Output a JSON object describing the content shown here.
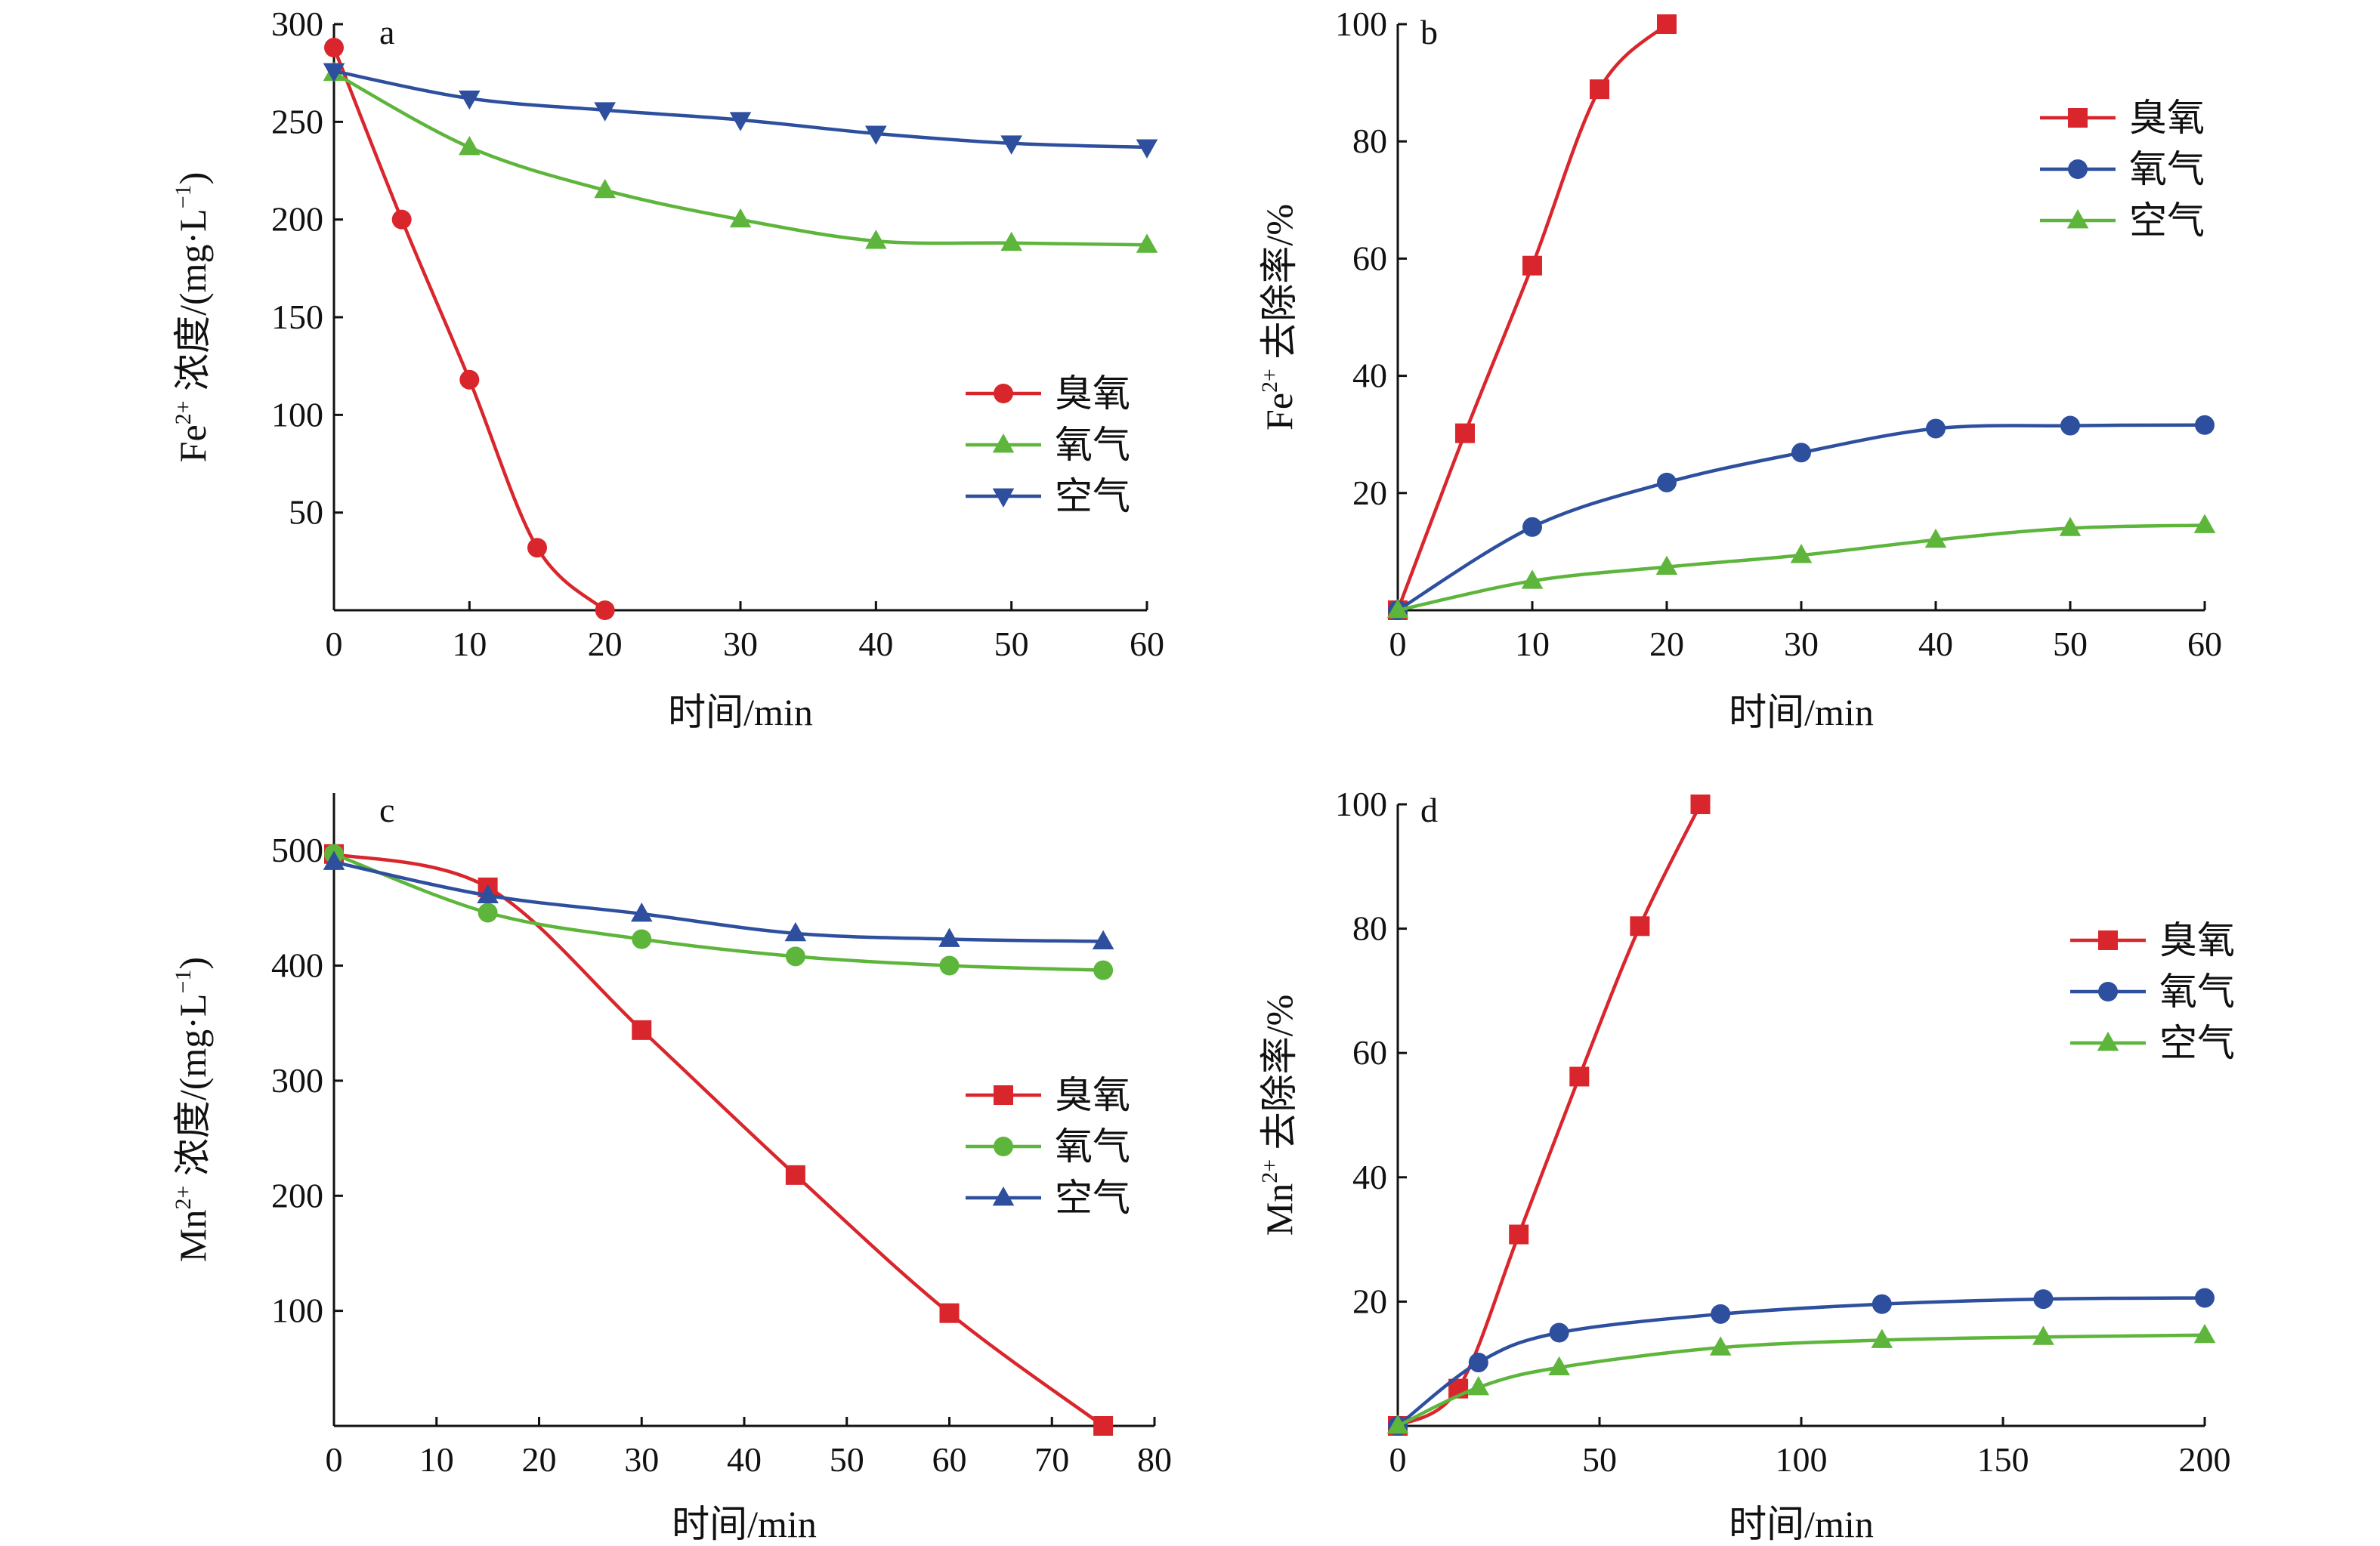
{
  "colors": {
    "ozone": "#d9262c",
    "oxygen": "#2d4f9e",
    "air": "#5db53b",
    "axis": "#111111"
  },
  "chart_data": [
    {
      "type": "line",
      "panel": "a",
      "xlabel": "时间/min",
      "ylabel": "Fe²⁺ 浓度/(mg·L⁻¹)",
      "xlim": [
        0,
        60
      ],
      "ylim": [
        0,
        300
      ],
      "xticks": [
        0,
        10,
        20,
        30,
        40,
        50,
        60
      ],
      "yticks": [
        50,
        100,
        150,
        200,
        250,
        300
      ],
      "legend_position": "center-right",
      "grid": false,
      "series": [
        {
          "name": "臭氧",
          "color": "#d9262c",
          "marker": "circle",
          "x": [
            0,
            5,
            10,
            15,
            20
          ],
          "y": [
            288,
            200,
            118,
            32,
            0
          ]
        },
        {
          "name": "氧气",
          "color": "#5db53b",
          "marker": "triangle-up",
          "x": [
            0,
            10,
            20,
            30,
            40,
            50,
            60
          ],
          "y": [
            275,
            237,
            215,
            200,
            189,
            188,
            187
          ]
        },
        {
          "name": "空气",
          "color": "#2d4f9e",
          "marker": "triangle-down",
          "x": [
            0,
            10,
            20,
            30,
            40,
            50,
            60
          ],
          "y": [
            276,
            262,
            256,
            251,
            244,
            239,
            237
          ]
        }
      ]
    },
    {
      "type": "line",
      "panel": "b",
      "xlabel": "时间/min",
      "ylabel": "Fe²⁺ 去除率/%",
      "xlim": [
        0,
        60
      ],
      "ylim": [
        0,
        100
      ],
      "xticks": [
        0,
        10,
        20,
        30,
        40,
        50,
        60
      ],
      "yticks": [
        20,
        40,
        60,
        80,
        100
      ],
      "legend_position": "top-right",
      "grid": false,
      "series": [
        {
          "name": "臭氧",
          "color": "#d9262c",
          "marker": "square",
          "x": [
            0,
            5,
            10,
            15,
            20
          ],
          "y": [
            0,
            30.2,
            58.8,
            88.9,
            100
          ]
        },
        {
          "name": "氧气",
          "color": "#2d4f9e",
          "marker": "circle",
          "x": [
            0,
            10,
            20,
            30,
            40,
            50,
            60
          ],
          "y": [
            0,
            14.2,
            21.8,
            26.9,
            31.0,
            31.5,
            31.6
          ]
        },
        {
          "name": "空气",
          "color": "#5db53b",
          "marker": "triangle-up",
          "x": [
            0,
            10,
            20,
            30,
            40,
            50,
            60
          ],
          "y": [
            0,
            5.0,
            7.4,
            9.4,
            12.0,
            14.0,
            14.5
          ]
        }
      ]
    },
    {
      "type": "line",
      "panel": "c",
      "xlabel": "时间/min",
      "ylabel": "Mn²⁺ 浓度/(mg·L⁻¹)",
      "xlim": [
        0,
        80
      ],
      "ylim": [
        0,
        550
      ],
      "xticks": [
        0,
        10,
        20,
        30,
        40,
        50,
        60,
        70,
        80
      ],
      "yticks": [
        100,
        200,
        300,
        400,
        500
      ],
      "legend_position": "center-right",
      "grid": false,
      "series": [
        {
          "name": "臭氧",
          "color": "#d9262c",
          "marker": "square",
          "x": [
            0,
            15,
            30,
            45,
            60,
            75
          ],
          "y": [
            497,
            468,
            344,
            218,
            98,
            0
          ]
        },
        {
          "name": "氧气",
          "color": "#5db53b",
          "marker": "circle",
          "x": [
            0,
            15,
            30,
            45,
            60,
            75
          ],
          "y": [
            497,
            446,
            423,
            408,
            400,
            396
          ]
        },
        {
          "name": "空气",
          "color": "#2d4f9e",
          "marker": "triangle-up",
          "x": [
            0,
            15,
            30,
            45,
            60,
            75
          ],
          "y": [
            490,
            461,
            445,
            428,
            423,
            421
          ]
        }
      ]
    },
    {
      "type": "line",
      "panel": "d",
      "xlabel": "时间/min",
      "ylabel": "Mn²⁺ 去除率/%",
      "xlim": [
        0,
        200
      ],
      "ylim": [
        0,
        100
      ],
      "xticks": [
        0,
        50,
        100,
        150,
        200
      ],
      "yticks": [
        20,
        40,
        60,
        80,
        100
      ],
      "legend_position": "top-right",
      "grid": false,
      "series": [
        {
          "name": "臭氧",
          "color": "#d9262c",
          "marker": "square",
          "x": [
            0,
            15,
            30,
            45,
            60,
            75
          ],
          "y": [
            0,
            6,
            30.8,
            56.2,
            80.4,
            100
          ]
        },
        {
          "name": "氧气",
          "color": "#2d4f9e",
          "marker": "circle",
          "x": [
            0,
            20,
            40,
            80,
            120,
            160,
            200
          ],
          "y": [
            0,
            10.2,
            15.0,
            18.0,
            19.6,
            20.4,
            20.6
          ]
        },
        {
          "name": "空气",
          "color": "#5db53b",
          "marker": "triangle-up",
          "x": [
            0,
            20,
            40,
            80,
            120,
            160,
            200
          ],
          "y": [
            0,
            6.2,
            9.4,
            12.6,
            13.8,
            14.3,
            14.6
          ]
        }
      ]
    }
  ]
}
